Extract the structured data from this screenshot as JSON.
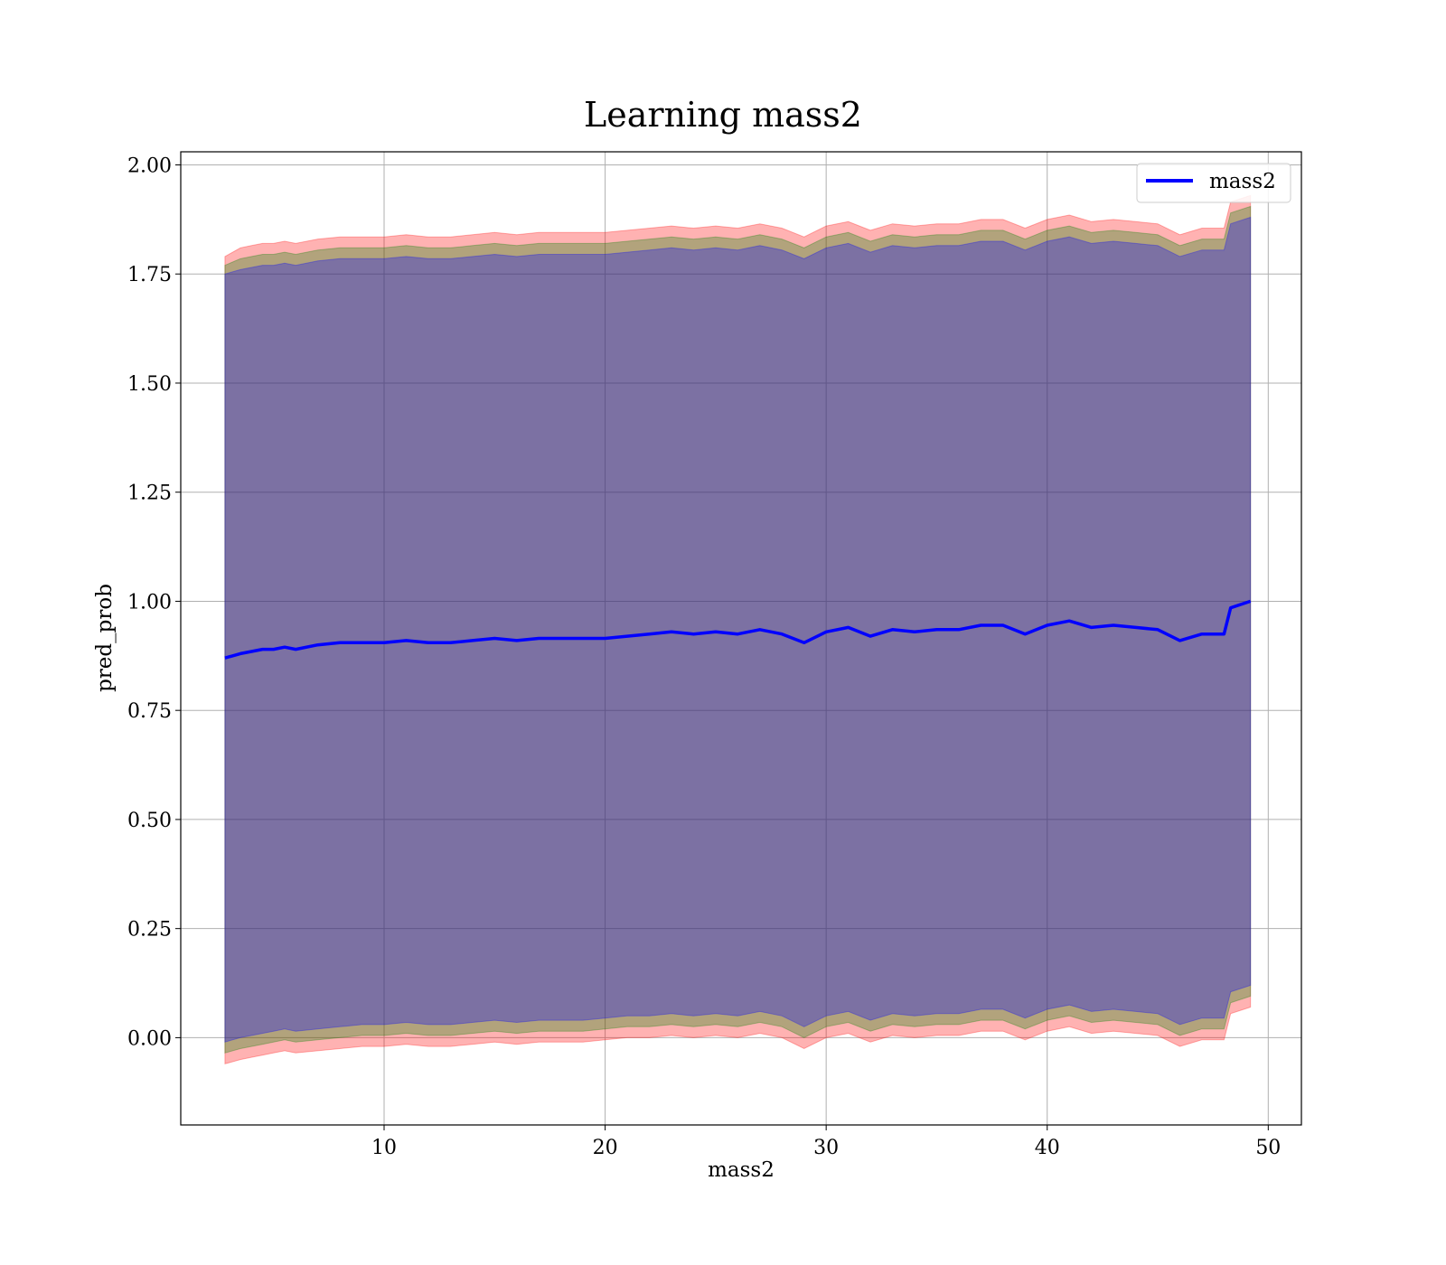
{
  "chart_data": {
    "type": "line",
    "title": "Learning mass2",
    "xlabel": "mass2",
    "ylabel": "pred_prob",
    "xlim": [
      0.8,
      51.5
    ],
    "ylim": [
      -0.2,
      2.03
    ],
    "xticks": [
      10,
      20,
      30,
      40,
      50
    ],
    "xtick_labels": [
      "10",
      "20",
      "30",
      "40",
      "50"
    ],
    "yticks": [
      0.0,
      0.25,
      0.5,
      0.75,
      1.0,
      1.25,
      1.5,
      1.75,
      2.0
    ],
    "ytick_labels": [
      "0.00",
      "0.25",
      "0.50",
      "0.75",
      "1.00",
      "1.25",
      "1.50",
      "1.75",
      "2.00"
    ],
    "grid": true,
    "legend_position": "top-right",
    "series": [
      {
        "name": "mass2",
        "color": "#0000ff",
        "x": [
          2.8,
          3.5,
          4.0,
          4.5,
          5.0,
          5.5,
          6.0,
          7.0,
          8.0,
          9.0,
          10.0,
          11.0,
          12.0,
          13.0,
          14.0,
          15.0,
          16.0,
          17.0,
          18.0,
          19.0,
          20.0,
          21.0,
          22.0,
          23.0,
          24.0,
          25.0,
          26.0,
          27.0,
          28.0,
          29.0,
          30.0,
          31.0,
          32.0,
          33.0,
          34.0,
          35.0,
          36.0,
          37.0,
          38.0,
          39.0,
          40.0,
          41.0,
          42.0,
          43.0,
          44.0,
          45.0,
          46.0,
          47.0,
          48.0,
          48.3,
          49.2
        ],
        "y": [
          0.87,
          0.88,
          0.885,
          0.89,
          0.89,
          0.895,
          0.89,
          0.9,
          0.905,
          0.905,
          0.905,
          0.91,
          0.905,
          0.905,
          0.91,
          0.915,
          0.91,
          0.915,
          0.915,
          0.915,
          0.915,
          0.92,
          0.925,
          0.93,
          0.925,
          0.93,
          0.925,
          0.935,
          0.925,
          0.905,
          0.93,
          0.94,
          0.92,
          0.935,
          0.93,
          0.935,
          0.935,
          0.945,
          0.945,
          0.925,
          0.945,
          0.955,
          0.94,
          0.945,
          0.94,
          0.935,
          0.91,
          0.925,
          0.925,
          0.985,
          1.0
        ]
      }
    ],
    "bands": [
      {
        "color": "#ff0000",
        "opacity": 0.3,
        "lower": [
          -0.06,
          -0.05,
          -0.045,
          -0.04,
          -0.035,
          -0.03,
          -0.035,
          -0.03,
          -0.025,
          -0.02,
          -0.02,
          -0.015,
          -0.02,
          -0.02,
          -0.015,
          -0.01,
          -0.015,
          -0.01,
          -0.01,
          -0.01,
          -0.005,
          0.0,
          0.0,
          0.005,
          0.0,
          0.005,
          0.0,
          0.01,
          0.0,
          -0.025,
          0.0,
          0.01,
          -0.01,
          0.005,
          0.0,
          0.005,
          0.005,
          0.015,
          0.015,
          -0.005,
          0.015,
          0.025,
          0.01,
          0.015,
          0.01,
          0.005,
          -0.02,
          -0.005,
          -0.005,
          0.055,
          0.07
        ],
        "upper": [
          1.79,
          1.81,
          1.815,
          1.82,
          1.82,
          1.825,
          1.82,
          1.83,
          1.835,
          1.835,
          1.835,
          1.84,
          1.835,
          1.835,
          1.84,
          1.845,
          1.84,
          1.845,
          1.845,
          1.845,
          1.845,
          1.85,
          1.855,
          1.86,
          1.855,
          1.86,
          1.855,
          1.865,
          1.855,
          1.835,
          1.86,
          1.87,
          1.85,
          1.865,
          1.86,
          1.865,
          1.865,
          1.875,
          1.875,
          1.855,
          1.875,
          1.885,
          1.87,
          1.875,
          1.87,
          1.865,
          1.84,
          1.855,
          1.855,
          1.915,
          1.93
        ]
      },
      {
        "color": "#008000",
        "opacity": 0.3,
        "lower": [
          -0.035,
          -0.025,
          -0.02,
          -0.015,
          -0.01,
          -0.005,
          -0.01,
          -0.005,
          0.0,
          0.005,
          0.005,
          0.01,
          0.005,
          0.005,
          0.01,
          0.015,
          0.01,
          0.015,
          0.015,
          0.015,
          0.02,
          0.025,
          0.025,
          0.03,
          0.025,
          0.03,
          0.025,
          0.035,
          0.025,
          0.0,
          0.025,
          0.035,
          0.015,
          0.03,
          0.025,
          0.03,
          0.03,
          0.04,
          0.04,
          0.02,
          0.04,
          0.05,
          0.035,
          0.04,
          0.035,
          0.03,
          0.005,
          0.02,
          0.02,
          0.08,
          0.095
        ],
        "upper": [
          1.77,
          1.785,
          1.79,
          1.795,
          1.795,
          1.8,
          1.795,
          1.805,
          1.81,
          1.81,
          1.81,
          1.815,
          1.81,
          1.81,
          1.815,
          1.82,
          1.815,
          1.82,
          1.82,
          1.82,
          1.82,
          1.825,
          1.83,
          1.835,
          1.83,
          1.835,
          1.83,
          1.84,
          1.83,
          1.81,
          1.835,
          1.845,
          1.825,
          1.84,
          1.835,
          1.84,
          1.84,
          1.85,
          1.85,
          1.83,
          1.85,
          1.86,
          1.845,
          1.85,
          1.845,
          1.84,
          1.815,
          1.83,
          1.83,
          1.89,
          1.905
        ]
      },
      {
        "color": "#0000ff",
        "opacity": 0.3,
        "lower": [
          -0.01,
          0.0,
          0.005,
          0.01,
          0.015,
          0.02,
          0.015,
          0.02,
          0.025,
          0.03,
          0.03,
          0.035,
          0.03,
          0.03,
          0.035,
          0.04,
          0.035,
          0.04,
          0.04,
          0.04,
          0.045,
          0.05,
          0.05,
          0.055,
          0.05,
          0.055,
          0.05,
          0.06,
          0.05,
          0.025,
          0.05,
          0.06,
          0.04,
          0.055,
          0.05,
          0.055,
          0.055,
          0.065,
          0.065,
          0.045,
          0.065,
          0.075,
          0.06,
          0.065,
          0.06,
          0.055,
          0.03,
          0.045,
          0.045,
          0.105,
          0.12
        ],
        "upper": [
          1.75,
          1.76,
          1.765,
          1.77,
          1.77,
          1.775,
          1.77,
          1.78,
          1.785,
          1.785,
          1.785,
          1.79,
          1.785,
          1.785,
          1.79,
          1.795,
          1.79,
          1.795,
          1.795,
          1.795,
          1.795,
          1.8,
          1.805,
          1.81,
          1.805,
          1.81,
          1.805,
          1.815,
          1.805,
          1.785,
          1.81,
          1.82,
          1.8,
          1.815,
          1.81,
          1.815,
          1.815,
          1.825,
          1.825,
          1.805,
          1.825,
          1.835,
          1.82,
          1.825,
          1.82,
          1.815,
          1.79,
          1.805,
          1.805,
          1.865,
          1.88
        ]
      }
    ]
  }
}
